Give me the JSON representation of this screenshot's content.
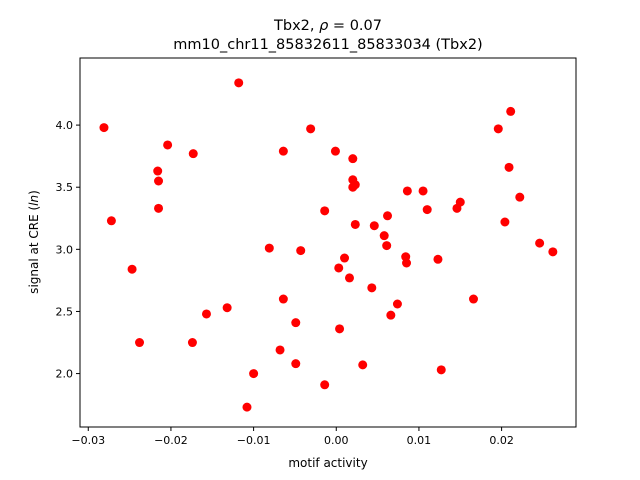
{
  "chart_data": {
    "type": "scatter",
    "title_line1_prefix": "Tbx2, ",
    "title_line1_symbol": "ρ",
    "title_line1_suffix": " = 0.07",
    "title_line2": "mm10_chr11_85832611_85833034 (Tbx2)",
    "xlabel": "motif activity",
    "ylabel_prefix": "signal at CRE (",
    "ylabel_italic": "ln",
    "ylabel_suffix": ")",
    "xlim": [
      -0.031,
      0.029
    ],
    "ylim": [
      1.57,
      4.54
    ],
    "x_ticks": [
      -0.03,
      -0.02,
      -0.01,
      0.0,
      0.01,
      0.02
    ],
    "x_tick_labels": [
      "−0.03",
      "−0.02",
      "−0.01",
      "0.00",
      "0.01",
      "0.02"
    ],
    "y_ticks": [
      2.0,
      2.5,
      3.0,
      3.5,
      4.0
    ],
    "y_tick_labels": [
      "2.0",
      "2.5",
      "3.0",
      "3.5",
      "4.0"
    ],
    "grid": false,
    "marker_color": "#ff0000",
    "points": [
      {
        "x": -0.0281,
        "y": 3.98
      },
      {
        "x": -0.0272,
        "y": 3.23
      },
      {
        "x": -0.0247,
        "y": 2.84
      },
      {
        "x": -0.0238,
        "y": 2.25
      },
      {
        "x": -0.0216,
        "y": 3.63
      },
      {
        "x": -0.0215,
        "y": 3.55
      },
      {
        "x": -0.0215,
        "y": 3.33
      },
      {
        "x": -0.0204,
        "y": 3.84
      },
      {
        "x": -0.0173,
        "y": 3.77
      },
      {
        "x": -0.0174,
        "y": 2.25
      },
      {
        "x": -0.0157,
        "y": 2.48
      },
      {
        "x": -0.0132,
        "y": 2.53
      },
      {
        "x": -0.0118,
        "y": 4.34
      },
      {
        "x": -0.0108,
        "y": 1.73
      },
      {
        "x": -0.01,
        "y": 2.0
      },
      {
        "x": -0.0081,
        "y": 3.01
      },
      {
        "x": -0.0068,
        "y": 2.19
      },
      {
        "x": -0.0064,
        "y": 3.79
      },
      {
        "x": -0.0064,
        "y": 2.6
      },
      {
        "x": -0.0049,
        "y": 2.41
      },
      {
        "x": -0.0049,
        "y": 2.08
      },
      {
        "x": -0.0043,
        "y": 2.99
      },
      {
        "x": -0.0031,
        "y": 3.97
      },
      {
        "x": -0.0014,
        "y": 3.31
      },
      {
        "x": -0.0014,
        "y": 1.91
      },
      {
        "x": -0.0001,
        "y": 3.79
      },
      {
        "x": 0.0003,
        "y": 2.85
      },
      {
        "x": 0.0004,
        "y": 2.36
      },
      {
        "x": 0.001,
        "y": 2.93
      },
      {
        "x": 0.0016,
        "y": 2.77
      },
      {
        "x": 0.002,
        "y": 3.73
      },
      {
        "x": 0.002,
        "y": 3.56
      },
      {
        "x": 0.002,
        "y": 3.5
      },
      {
        "x": 0.0023,
        "y": 3.52
      },
      {
        "x": 0.0023,
        "y": 3.2
      },
      {
        "x": 0.0032,
        "y": 2.07
      },
      {
        "x": 0.0043,
        "y": 2.69
      },
      {
        "x": 0.0046,
        "y": 3.19
      },
      {
        "x": 0.0058,
        "y": 3.11
      },
      {
        "x": 0.0061,
        "y": 3.03
      },
      {
        "x": 0.0062,
        "y": 3.27
      },
      {
        "x": 0.0066,
        "y": 2.47
      },
      {
        "x": 0.0074,
        "y": 2.56
      },
      {
        "x": 0.0084,
        "y": 2.94
      },
      {
        "x": 0.0085,
        "y": 2.89
      },
      {
        "x": 0.0086,
        "y": 3.47
      },
      {
        "x": 0.0105,
        "y": 3.47
      },
      {
        "x": 0.011,
        "y": 3.32
      },
      {
        "x": 0.0123,
        "y": 2.92
      },
      {
        "x": 0.0127,
        "y": 2.03
      },
      {
        "x": 0.0146,
        "y": 3.33
      },
      {
        "x": 0.015,
        "y": 3.38
      },
      {
        "x": 0.0166,
        "y": 2.6
      },
      {
        "x": 0.0196,
        "y": 3.97
      },
      {
        "x": 0.0204,
        "y": 3.22
      },
      {
        "x": 0.0209,
        "y": 3.66
      },
      {
        "x": 0.0211,
        "y": 4.11
      },
      {
        "x": 0.0222,
        "y": 3.42
      },
      {
        "x": 0.0246,
        "y": 3.05
      },
      {
        "x": 0.0262,
        "y": 2.98
      }
    ]
  }
}
